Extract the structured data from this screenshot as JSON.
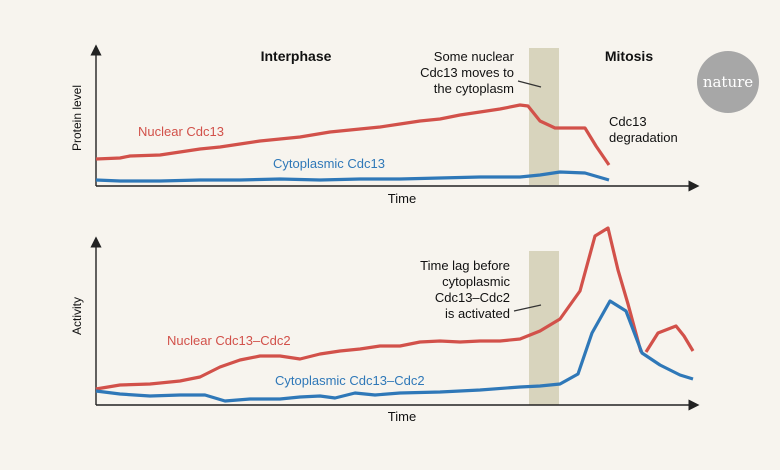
{
  "logo": {
    "text": "nature"
  },
  "colors": {
    "nuclear": "#d2514a",
    "cytoplasmic": "#2f78b8",
    "band": "#d8d4bd",
    "axis": "#222222",
    "logo_bg": "#a7a7a7"
  },
  "top": {
    "phase_interphase": "Interphase",
    "phase_mitosis": "Mitosis",
    "ylabel": "Protein level",
    "xlabel": "Time",
    "series_nuclear": "Nuclear Cdc13",
    "series_cytoplasmic": "Cytoplasmic Cdc13",
    "note_line1": "Some nuclear",
    "note_line2": "Cdc13 moves to",
    "note_line3": "the cytoplasm",
    "degradation_line1": "Cdc13",
    "degradation_line2": "degradation"
  },
  "bottom": {
    "ylabel": "Activity",
    "xlabel": "Time",
    "series_nuclear": "Nuclear Cdc13–Cdc2",
    "series_cytoplasmic": "Cytoplasmic Cdc13–Cdc2",
    "note_line1": "Time lag before",
    "note_line2": "cytoplasmic",
    "note_line3": "Cdc13–Cdc2",
    "note_line4": "is activated"
  },
  "chart_data": [
    {
      "type": "line",
      "xlabel": "Time",
      "ylabel": "Protein level",
      "series": [
        {
          "name": "Nuclear Cdc13",
          "x": [
            0,
            5,
            10,
            15,
            20,
            25,
            30,
            35,
            40,
            45,
            50,
            55,
            60,
            65,
            70,
            72,
            75,
            80,
            82,
            85,
            88,
            90
          ],
          "values": [
            0.17,
            0.18,
            0.22,
            0.24,
            0.3,
            0.34,
            0.4,
            0.45,
            0.5,
            0.6,
            0.63,
            0.72,
            0.78,
            0.85,
            0.96,
            0.97,
            0.86,
            0.62,
            0.62,
            0.62,
            0.35,
            0.17
          ]
        },
        {
          "name": "Cytoplasmic Cdc13",
          "x": [
            0,
            10,
            20,
            30,
            40,
            50,
            60,
            65,
            70,
            75,
            80,
            85,
            88
          ],
          "values": [
            0.01,
            0.01,
            0.02,
            0.03,
            0.02,
            0.03,
            0.04,
            0.05,
            0.05,
            0.07,
            0.12,
            0.1,
            0.02
          ]
        }
      ],
      "regions": [
        "Interphase",
        "Mitosis"
      ]
    },
    {
      "type": "line",
      "xlabel": "Time",
      "ylabel": "Activity",
      "series": [
        {
          "name": "Nuclear Cdc13–Cdc2",
          "x": [
            0,
            5,
            10,
            15,
            20,
            25,
            30,
            35,
            40,
            45,
            50,
            55,
            60,
            65,
            70,
            75,
            78,
            80,
            82,
            85,
            88,
            90
          ],
          "values": [
            0.05,
            0.08,
            0.09,
            0.12,
            0.2,
            0.3,
            0.28,
            0.33,
            0.38,
            0.4,
            0.42,
            0.42,
            0.43,
            0.44,
            0.5,
            0.58,
            0.72,
            0.95,
            1.0,
            0.6,
            0.2,
            0.35
          ]
        },
        {
          "name": "Cytoplasmic Cdc13–Cdc2",
          "x": [
            0,
            5,
            10,
            15,
            20,
            25,
            30,
            35,
            40,
            45,
            50,
            55,
            60,
            65,
            70,
            75,
            78,
            80,
            82,
            85,
            88,
            90
          ],
          "values": [
            0.04,
            0.02,
            0.02,
            0.03,
            -0.03,
            0.0,
            0.01,
            0.03,
            0.02,
            0.04,
            0.05,
            0.05,
            0.06,
            0.08,
            0.09,
            0.1,
            0.2,
            0.4,
            0.62,
            0.55,
            0.25,
            0.18
          ]
        }
      ]
    }
  ]
}
